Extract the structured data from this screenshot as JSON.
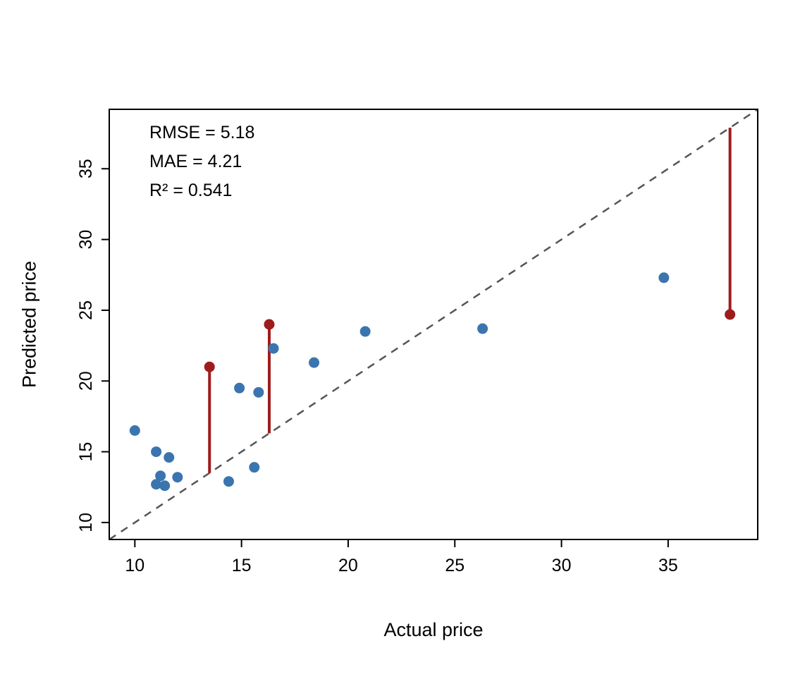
{
  "chart_data": {
    "type": "scatter",
    "title": "",
    "xlabel": "Actual price",
    "ylabel": "Predicted price",
    "xlim": [
      8.8,
      39.2
    ],
    "ylim": [
      8.8,
      39.2
    ],
    "x_ticks": [
      10,
      15,
      20,
      25,
      30,
      35
    ],
    "y_ticks": [
      10,
      15,
      20,
      25,
      30,
      35
    ],
    "grid": false,
    "legend": "none",
    "annotations": [
      "RMSE = 5.18",
      "MAE = 4.21",
      "R² = 0.541"
    ],
    "identity_line": {
      "style": "dashed",
      "from": 8.8,
      "to": 39.2,
      "color": "#555555"
    },
    "series": [
      {
        "name": "predictions",
        "marker": "circle",
        "color": "#3B75AF",
        "residual_to_identity": false,
        "points": [
          [
            10.0,
            16.5
          ],
          [
            11.0,
            15.0
          ],
          [
            11.6,
            14.6
          ],
          [
            11.2,
            13.3
          ],
          [
            11.0,
            12.7
          ],
          [
            11.4,
            12.6
          ],
          [
            12.0,
            13.2
          ],
          [
            14.4,
            12.9
          ],
          [
            14.9,
            19.5
          ],
          [
            15.6,
            13.9
          ],
          [
            15.8,
            19.2
          ],
          [
            16.5,
            22.3
          ],
          [
            18.4,
            21.3
          ],
          [
            20.8,
            23.5
          ],
          [
            26.3,
            23.7
          ],
          [
            34.8,
            27.3
          ]
        ]
      },
      {
        "name": "highlighted-errors",
        "marker": "circle",
        "color": "#9E1C1C",
        "residual_to_identity": true,
        "points": [
          [
            13.5,
            21.0
          ],
          [
            16.3,
            24.0
          ],
          [
            37.9,
            24.7
          ]
        ]
      }
    ],
    "colors": {
      "point": "#3B75AF",
      "highlight": "#9E1C1C",
      "identity": "#555555",
      "axis": "#000000"
    }
  }
}
